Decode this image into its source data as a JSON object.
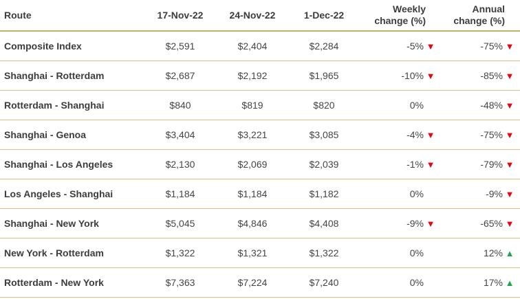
{
  "headers": {
    "route": "Route",
    "d1": "17-Nov-22",
    "d2": "24-Nov-22",
    "d3": "1-Dec-22",
    "weekly_l1": "Weekly",
    "weekly_l2": "change (%)",
    "annual_l1": "Annual",
    "annual_l2": "change (%)"
  },
  "rows": [
    {
      "route": "Composite Index",
      "d1": "$2,591",
      "d2": "$2,404",
      "d3": "$2,284",
      "weekly": "-5%",
      "weekly_dir": "down",
      "annual": "-75%",
      "annual_dir": "down"
    },
    {
      "route": "Shanghai - Rotterdam",
      "d1": "$2,687",
      "d2": "$2,192",
      "d3": "$1,965",
      "weekly": "-10%",
      "weekly_dir": "down",
      "annual": "-85%",
      "annual_dir": "down"
    },
    {
      "route": "Rotterdam - Shanghai",
      "d1": "$840",
      "d2": "$819",
      "d3": "$820",
      "weekly": "0%",
      "weekly_dir": "none",
      "annual": "-48%",
      "annual_dir": "down"
    },
    {
      "route": "Shanghai - Genoa",
      "d1": "$3,404",
      "d2": "$3,221",
      "d3": "$3,085",
      "weekly": "-4%",
      "weekly_dir": "down",
      "annual": "-75%",
      "annual_dir": "down"
    },
    {
      "route": "Shanghai - Los Angeles",
      "d1": "$2,130",
      "d2": "$2,069",
      "d3": "$2,039",
      "weekly": "-1%",
      "weekly_dir": "down",
      "annual": "-79%",
      "annual_dir": "down"
    },
    {
      "route": "Los Angeles - Shanghai",
      "d1": "$1,184",
      "d2": "$1,184",
      "d3": "$1,182",
      "weekly": "0%",
      "weekly_dir": "none",
      "annual": "-9%",
      "annual_dir": "down"
    },
    {
      "route": "Shanghai - New York",
      "d1": "$5,045",
      "d2": "$4,846",
      "d3": "$4,408",
      "weekly": "-9%",
      "weekly_dir": "down",
      "annual": "-65%",
      "annual_dir": "down"
    },
    {
      "route": "New York - Rotterdam",
      "d1": "$1,322",
      "d2": "$1,321",
      "d3": "$1,322",
      "weekly": "0%",
      "weekly_dir": "none",
      "annual": "12%",
      "annual_dir": "up"
    },
    {
      "route": "Rotterdam - New York",
      "d1": "$7,363",
      "d2": "$7,224",
      "d3": "$7,240",
      "weekly": "0%",
      "weekly_dir": "none",
      "annual": "17%",
      "annual_dir": "up"
    }
  ],
  "colors": {
    "down": "#e30613",
    "up": "#23a455",
    "rule": "#c6b270"
  },
  "icons": {
    "down": "triangle-down-icon",
    "up": "triangle-up-icon"
  }
}
